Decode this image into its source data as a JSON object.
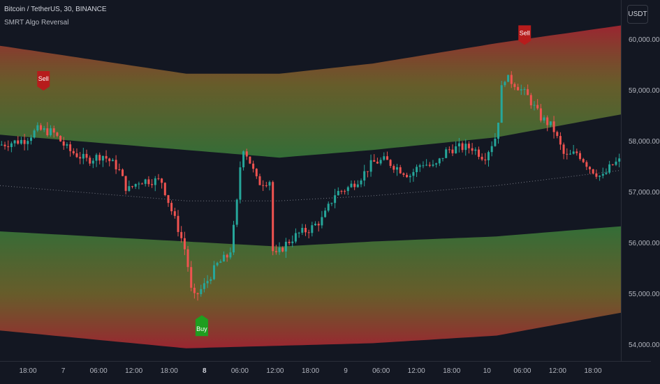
{
  "header": {
    "symbol_title": "Bitcoin / TetherUS, 30, BINANCE",
    "indicator_name": "SMRT Algo Reversal",
    "currency": "USDT"
  },
  "y_axis": {
    "ticks": [
      {
        "label": "60,000.00",
        "value": 60000
      },
      {
        "label": "59,000.00",
        "value": 59000
      },
      {
        "label": "58,000.00",
        "value": 58000
      },
      {
        "label": "57,000.00",
        "value": 57000
      },
      {
        "label": "56,000.00",
        "value": 56000
      },
      {
        "label": "55,000.00",
        "value": 55000
      },
      {
        "label": "54,000.00",
        "value": 54000
      }
    ]
  },
  "x_axis": {
    "ticks": [
      {
        "label": "18:00",
        "bold": false
      },
      {
        "label": "7",
        "bold": false
      },
      {
        "label": "06:00",
        "bold": false
      },
      {
        "label": "12:00",
        "bold": false
      },
      {
        "label": "18:00",
        "bold": false
      },
      {
        "label": "8",
        "bold": true
      },
      {
        "label": "06:00",
        "bold": false
      },
      {
        "label": "12:00",
        "bold": false
      },
      {
        "label": "18:00",
        "bold": false
      },
      {
        "label": "9",
        "bold": false
      },
      {
        "label": "06:00",
        "bold": false
      },
      {
        "label": "12:00",
        "bold": false
      },
      {
        "label": "18:00",
        "bold": false
      },
      {
        "label": "10",
        "bold": false
      },
      {
        "label": "06:00",
        "bold": false
      },
      {
        "label": "12:00",
        "bold": false
      },
      {
        "label": "18:00",
        "bold": false
      }
    ]
  },
  "signals": {
    "sell_label": "Sell",
    "buy_label": "Buy"
  },
  "colors": {
    "background": "#131722",
    "up_candle": "#26a69a",
    "down_candle": "#ef5350",
    "band_outer": "#b22833",
    "band_inner": "#3e8a3e",
    "sell_marker": "#b71c1c",
    "buy_marker": "#1f9e1f"
  },
  "chart_data": {
    "type": "candlestick",
    "price_path": [
      {
        "x": 0,
        "y": 57950
      },
      {
        "x": 0.04,
        "y": 58050
      },
      {
        "x": 0.06,
        "y": 58250
      },
      {
        "x": 0.085,
        "y": 58200
      },
      {
        "x": 0.11,
        "y": 57850
      },
      {
        "x": 0.14,
        "y": 57650
      },
      {
        "x": 0.165,
        "y": 57750
      },
      {
        "x": 0.19,
        "y": 57500
      },
      {
        "x": 0.205,
        "y": 57050
      },
      {
        "x": 0.225,
        "y": 57250
      },
      {
        "x": 0.26,
        "y": 57250
      },
      {
        "x": 0.275,
        "y": 56700
      },
      {
        "x": 0.29,
        "y": 56200
      },
      {
        "x": 0.3,
        "y": 55800
      },
      {
        "x": 0.31,
        "y": 54900
      },
      {
        "x": 0.33,
        "y": 55200
      },
      {
        "x": 0.35,
        "y": 55600
      },
      {
        "x": 0.37,
        "y": 55800
      },
      {
        "x": 0.38,
        "y": 56600
      },
      {
        "x": 0.39,
        "y": 57950
      },
      {
        "x": 0.4,
        "y": 57700
      },
      {
        "x": 0.415,
        "y": 57200
      },
      {
        "x": 0.435,
        "y": 57250
      },
      {
        "x": 0.44,
        "y": 55700
      },
      {
        "x": 0.46,
        "y": 56000
      },
      {
        "x": 0.48,
        "y": 56200
      },
      {
        "x": 0.5,
        "y": 56300
      },
      {
        "x": 0.52,
        "y": 56500
      },
      {
        "x": 0.54,
        "y": 57000
      },
      {
        "x": 0.56,
        "y": 57100
      },
      {
        "x": 0.58,
        "y": 57300
      },
      {
        "x": 0.6,
        "y": 57600
      },
      {
        "x": 0.62,
        "y": 57650
      },
      {
        "x": 0.64,
        "y": 57500
      },
      {
        "x": 0.66,
        "y": 57350
      },
      {
        "x": 0.68,
        "y": 57600
      },
      {
        "x": 0.7,
        "y": 57500
      },
      {
        "x": 0.72,
        "y": 57850
      },
      {
        "x": 0.74,
        "y": 57900
      },
      {
        "x": 0.76,
        "y": 57900
      },
      {
        "x": 0.78,
        "y": 57700
      },
      {
        "x": 0.8,
        "y": 58150
      },
      {
        "x": 0.81,
        "y": 59300
      },
      {
        "x": 0.83,
        "y": 59150
      },
      {
        "x": 0.85,
        "y": 58900
      },
      {
        "x": 0.87,
        "y": 58500
      },
      {
        "x": 0.89,
        "y": 58300
      },
      {
        "x": 0.91,
        "y": 57700
      },
      {
        "x": 0.93,
        "y": 57800
      },
      {
        "x": 0.95,
        "y": 57500
      },
      {
        "x": 0.97,
        "y": 57300
      },
      {
        "x": 0.985,
        "y": 57550
      },
      {
        "x": 1,
        "y": 57650
      }
    ],
    "bands": {
      "upper_outer": [
        {
          "x": 0,
          "y": 59900
        },
        {
          "x": 0.3,
          "y": 59350
        },
        {
          "x": 0.45,
          "y": 59350
        },
        {
          "x": 0.6,
          "y": 59550
        },
        {
          "x": 0.8,
          "y": 59950
        },
        {
          "x": 1,
          "y": 60300
        }
      ],
      "upper_inner": [
        {
          "x": 0,
          "y": 58150
        },
        {
          "x": 0.3,
          "y": 57850
        },
        {
          "x": 0.45,
          "y": 57700
        },
        {
          "x": 0.6,
          "y": 57850
        },
        {
          "x": 0.8,
          "y": 58100
        },
        {
          "x": 1,
          "y": 58550
        }
      ],
      "lower_inner": [
        {
          "x": 0,
          "y": 56250
        },
        {
          "x": 0.3,
          "y": 56050
        },
        {
          "x": 0.45,
          "y": 55950
        },
        {
          "x": 0.6,
          "y": 56050
        },
        {
          "x": 0.8,
          "y": 56150
        },
        {
          "x": 1,
          "y": 56350
        }
      ],
      "lower_outer": [
        {
          "x": 0,
          "y": 54300
        },
        {
          "x": 0.3,
          "y": 53950
        },
        {
          "x": 0.45,
          "y": 54000
        },
        {
          "x": 0.6,
          "y": 54050
        },
        {
          "x": 0.8,
          "y": 54200
        },
        {
          "x": 1,
          "y": 54650
        }
      ],
      "basis": [
        {
          "x": 0,
          "y": 57150
        },
        {
          "x": 0.3,
          "y": 56850
        },
        {
          "x": 0.45,
          "y": 56850
        },
        {
          "x": 0.6,
          "y": 56950
        },
        {
          "x": 0.8,
          "y": 57150
        },
        {
          "x": 1,
          "y": 57450
        }
      ]
    },
    "markers": [
      {
        "label": "Sell",
        "x": 0.07,
        "price": 59100,
        "type": "sell"
      },
      {
        "label": "Sell",
        "x": 0.845,
        "price": 60000,
        "type": "sell"
      },
      {
        "label": "Buy",
        "x": 0.325,
        "price": 54300,
        "type": "buy"
      }
    ],
    "ylim": [
      53700,
      60800
    ]
  }
}
